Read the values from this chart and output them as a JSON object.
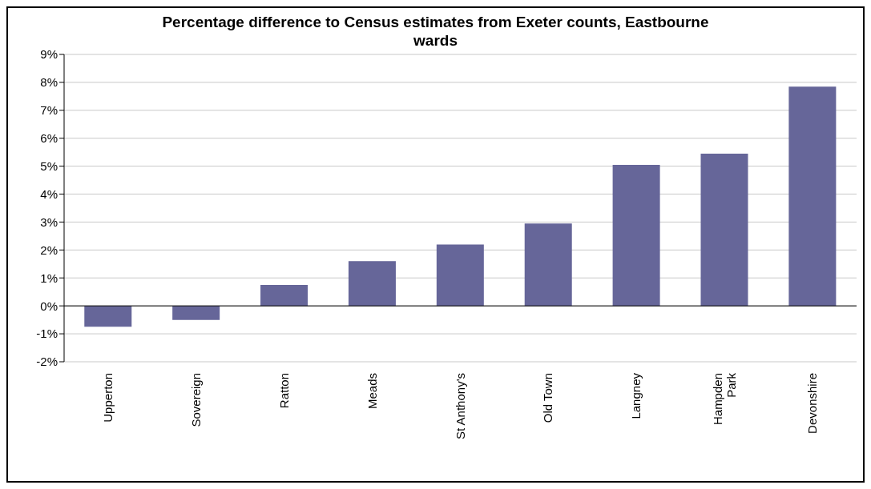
{
  "chart_data": {
    "type": "bar",
    "title": "Percentage difference to Census estimates from Exeter counts, Eastbourne wards",
    "categories": [
      "Upperton",
      "Sovereign",
      "Ratton",
      "Meads",
      "St Anthony's",
      "Old Town",
      "Langney",
      "Hampden Park",
      "Devonshire"
    ],
    "values": [
      -0.75,
      -0.5,
      0.75,
      1.6,
      2.2,
      2.95,
      5.05,
      5.45,
      7.85
    ],
    "color": "#666699",
    "ylim": [
      -2,
      9
    ],
    "yticks": [
      {
        "value": -2,
        "label": "-2%"
      },
      {
        "value": -1,
        "label": "-1%"
      },
      {
        "value": 0,
        "label": "0%"
      },
      {
        "value": 1,
        "label": "1%"
      },
      {
        "value": 2,
        "label": "2%"
      },
      {
        "value": 3,
        "label": "3%"
      },
      {
        "value": 4,
        "label": "4%"
      },
      {
        "value": 5,
        "label": "5%"
      },
      {
        "value": 6,
        "label": "6%"
      },
      {
        "value": 7,
        "label": "7%"
      },
      {
        "value": 8,
        "label": "8%"
      },
      {
        "value": 9,
        "label": "9%"
      }
    ],
    "grid": "y",
    "legend": false
  }
}
